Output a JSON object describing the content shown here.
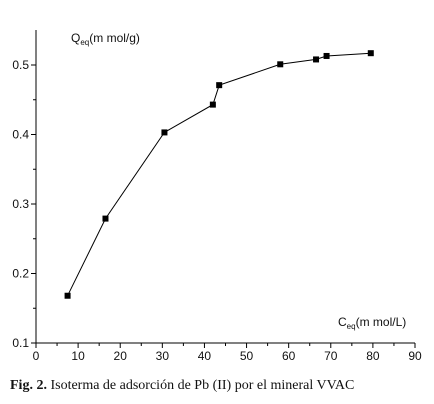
{
  "chart_data": {
    "type": "line",
    "ylabel_main": "Q",
    "ylabel_sub": "eq",
    "ylabel_unit": "(m mol/g)",
    "xlabel_main": "C",
    "xlabel_sub": "eq",
    "xlabel_unit": "(m mol/L)",
    "xlim": [
      0,
      90
    ],
    "ylim": [
      0.1,
      0.55
    ],
    "xticks": [
      0,
      10,
      20,
      30,
      40,
      50,
      60,
      70,
      80,
      90
    ],
    "xtick_labels": [
      "0",
      "10",
      "20",
      "30",
      "40",
      "50",
      "60",
      "70",
      "80",
      "90"
    ],
    "yticks": [
      0.1,
      0.2,
      0.3,
      0.4,
      0.5
    ],
    "ytick_labels": [
      "0.1",
      "0.2",
      "0.3",
      "0.4",
      "0.5"
    ],
    "grid": false,
    "marker": "square",
    "color": "#000000",
    "series": [
      {
        "x": [
          7.5,
          16.5,
          30.5,
          42,
          43.5,
          58,
          66.5,
          69,
          79.5
        ],
        "y": [
          0.168,
          0.279,
          0.403,
          0.443,
          0.471,
          0.501,
          0.508,
          0.513,
          0.517
        ]
      }
    ]
  },
  "caption": {
    "fig_label": "Fig. 2.",
    "text": " Isoterma de adsorción de Pb (II) por el mineral VVAC"
  }
}
